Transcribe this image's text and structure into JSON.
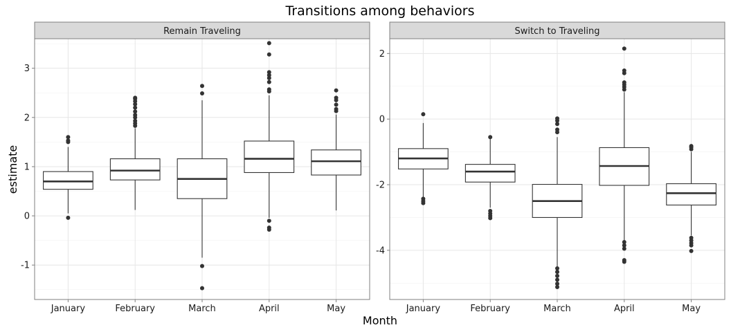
{
  "chart_data": {
    "type": "boxplot",
    "title": "Transitions among behaviors",
    "xlabel": "Month",
    "ylabel": "estimate",
    "categories": [
      "January",
      "February",
      "March",
      "April",
      "May"
    ],
    "grid": true,
    "facets": [
      {
        "strip": "Remain Traveling",
        "ylim": [
          -1.7,
          3.6
        ],
        "yticks": [
          -1,
          0,
          1,
          2,
          3
        ],
        "ytick_labels": [
          "-1",
          "0",
          "1",
          "2",
          "3"
        ],
        "boxes": [
          {
            "category": "January",
            "q1": 0.54,
            "median": 0.7,
            "q3": 0.9,
            "whisker_low": 0.05,
            "whisker_high": 1.4,
            "outliers": [
              -0.04,
              1.5,
              1.53,
              1.6
            ]
          },
          {
            "category": "February",
            "q1": 0.73,
            "median": 0.92,
            "q3": 1.16,
            "whisker_low": 0.12,
            "whisker_high": 1.78,
            "outliers": [
              1.83,
              1.88,
              1.93,
              2.0,
              2.05,
              2.12,
              2.2,
              2.27,
              2.33,
              2.38,
              2.4
            ]
          },
          {
            "category": "March",
            "q1": 0.35,
            "median": 0.75,
            "q3": 1.16,
            "whisker_low": -0.85,
            "whisker_high": 2.35,
            "outliers": [
              -1.47,
              -1.02,
              2.49,
              2.64
            ]
          },
          {
            "category": "April",
            "q1": 0.88,
            "median": 1.16,
            "q3": 1.52,
            "whisker_low": -0.04,
            "whisker_high": 2.45,
            "outliers": [
              -0.28,
              -0.24,
              -0.1,
              2.53,
              2.57,
              2.72,
              2.8,
              2.86,
              2.92,
              3.28,
              3.51
            ]
          },
          {
            "category": "May",
            "q1": 0.83,
            "median": 1.11,
            "q3": 1.34,
            "whisker_low": 0.11,
            "whisker_high": 2.06,
            "outliers": [
              2.13,
              2.17,
              2.26,
              2.35,
              2.4,
              2.55
            ]
          }
        ]
      },
      {
        "strip": "Switch to Traveling",
        "ylim": [
          -5.5,
          2.45
        ],
        "yticks": [
          -4,
          -2,
          0,
          2
        ],
        "ytick_labels": [
          "-4",
          "-2",
          "0",
          "2"
        ],
        "boxes": [
          {
            "category": "January",
            "q1": -1.52,
            "median": -1.2,
            "q3": -0.9,
            "whisker_low": -2.38,
            "whisker_high": -0.12,
            "outliers": [
              -2.56,
              -2.5,
              -2.43,
              0.15
            ]
          },
          {
            "category": "February",
            "q1": -1.92,
            "median": -1.6,
            "q3": -1.38,
            "whisker_low": -2.7,
            "whisker_high": -0.6,
            "outliers": [
              -3.02,
              -2.95,
              -2.88,
              -2.8,
              -0.55
            ]
          },
          {
            "category": "March",
            "q1": -3.0,
            "median": -2.5,
            "q3": -1.99,
            "whisker_low": -4.5,
            "whisker_high": -0.55,
            "outliers": [
              -5.12,
              -5.02,
              -4.9,
              -4.78,
              -4.66,
              -4.55,
              -0.4,
              -0.32,
              -0.15,
              -0.05,
              0.02
            ]
          },
          {
            "category": "April",
            "q1": -2.02,
            "median": -1.43,
            "q3": -0.87,
            "whisker_low": -3.7,
            "whisker_high": 0.82,
            "outliers": [
              -4.35,
              -4.3,
              -3.95,
              -3.85,
              -3.75,
              0.9,
              0.98,
              1.05,
              1.12,
              1.4,
              1.48,
              2.15
            ]
          },
          {
            "category": "May",
            "q1": -2.62,
            "median": -2.26,
            "q3": -1.97,
            "whisker_low": -3.55,
            "whisker_high": -1.0,
            "outliers": [
              -4.02,
              -3.85,
              -3.78,
              -3.7,
              -3.62,
              -0.92,
              -0.86,
              -0.82
            ]
          }
        ]
      }
    ]
  }
}
